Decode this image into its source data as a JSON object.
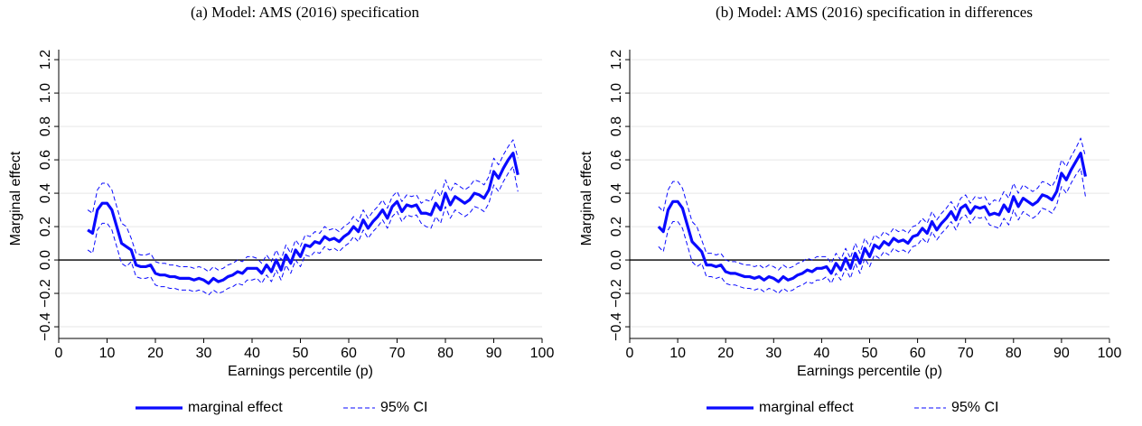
{
  "chart_data": [
    {
      "type": "line",
      "title": "(a) Model: AMS (2016) specification",
      "xlabel": "Earnings percentile (p)",
      "ylabel": "Marginal effect",
      "xlim": [
        0,
        100
      ],
      "xticks": [
        0,
        10,
        20,
        30,
        40,
        50,
        60,
        70,
        80,
        90,
        100
      ],
      "ylim": [
        -0.47,
        1.26
      ],
      "yticks": [
        {
          "value": -0.4,
          "label": "−0.4"
        },
        {
          "value": -0.2,
          "label": "−0.2"
        },
        {
          "value": 0,
          "label": "0.0"
        },
        0.2,
        0.4,
        0.6,
        0.8,
        {
          "value": 1,
          "label": "1.0"
        },
        1.2
      ],
      "grid": true,
      "zero_line": true,
      "x": [
        6,
        7,
        8,
        9,
        10,
        11,
        12,
        13,
        14,
        15,
        16,
        17,
        18,
        19,
        20,
        21,
        22,
        23,
        24,
        25,
        26,
        27,
        28,
        29,
        30,
        31,
        32,
        33,
        34,
        35,
        36,
        37,
        38,
        39,
        40,
        41,
        42,
        43,
        44,
        45,
        46,
        47,
        48,
        49,
        50,
        51,
        52,
        53,
        54,
        55,
        56,
        57,
        58,
        59,
        60,
        61,
        62,
        63,
        64,
        65,
        66,
        67,
        68,
        69,
        70,
        71,
        72,
        73,
        74,
        75,
        76,
        77,
        78,
        79,
        80,
        81,
        82,
        83,
        84,
        85,
        86,
        87,
        88,
        89,
        90,
        91,
        92,
        93,
        94,
        95
      ],
      "series": [
        {
          "name": "marginal effect",
          "color": "#0a0aff",
          "style": "solid",
          "values": [
            0.18,
            0.16,
            0.3,
            0.34,
            0.34,
            0.3,
            0.2,
            0.1,
            0.08,
            0.06,
            -0.03,
            -0.04,
            -0.04,
            -0.03,
            -0.08,
            -0.09,
            -0.09,
            -0.1,
            -0.1,
            -0.11,
            -0.11,
            -0.11,
            -0.12,
            -0.11,
            -0.12,
            -0.14,
            -0.11,
            -0.13,
            -0.12,
            -0.1,
            -0.09,
            -0.07,
            -0.08,
            -0.05,
            -0.05,
            -0.05,
            -0.08,
            -0.03,
            -0.07,
            0.0,
            -0.06,
            0.03,
            -0.02,
            0.06,
            0.02,
            0.09,
            0.08,
            0.11,
            0.1,
            0.14,
            0.12,
            0.13,
            0.11,
            0.14,
            0.16,
            0.2,
            0.17,
            0.24,
            0.19,
            0.23,
            0.26,
            0.3,
            0.25,
            0.32,
            0.35,
            0.29,
            0.33,
            0.32,
            0.33,
            0.28,
            0.28,
            0.27,
            0.34,
            0.3,
            0.4,
            0.33,
            0.38,
            0.36,
            0.34,
            0.36,
            0.4,
            0.39,
            0.37,
            0.42,
            0.53,
            0.49,
            0.55,
            0.6,
            0.64,
            0.51
          ]
        },
        {
          "name": "95% CI",
          "color": "#0a0aff",
          "style": "dashed",
          "lower": [
            0.06,
            0.04,
            0.18,
            0.22,
            0.22,
            0.18,
            0.08,
            -0.02,
            -0.04,
            -0.01,
            -0.1,
            -0.11,
            -0.11,
            -0.1,
            -0.15,
            -0.16,
            -0.16,
            -0.17,
            -0.17,
            -0.18,
            -0.18,
            -0.18,
            -0.19,
            -0.18,
            -0.19,
            -0.21,
            -0.18,
            -0.2,
            -0.19,
            -0.17,
            -0.16,
            -0.14,
            -0.15,
            -0.12,
            -0.12,
            -0.11,
            -0.14,
            -0.09,
            -0.13,
            -0.06,
            -0.12,
            -0.03,
            -0.08,
            0.0,
            -0.04,
            0.03,
            0.02,
            0.05,
            0.04,
            0.08,
            0.06,
            0.07,
            0.05,
            0.08,
            0.1,
            0.14,
            0.11,
            0.18,
            0.13,
            0.17,
            0.2,
            0.24,
            0.19,
            0.26,
            0.29,
            0.23,
            0.27,
            0.26,
            0.27,
            0.22,
            0.2,
            0.19,
            0.26,
            0.22,
            0.32,
            0.25,
            0.3,
            0.28,
            0.26,
            0.28,
            0.32,
            0.31,
            0.29,
            0.34,
            0.45,
            0.41,
            0.47,
            0.52,
            0.56,
            0.41
          ],
          "upper": [
            0.3,
            0.28,
            0.42,
            0.46,
            0.46,
            0.42,
            0.32,
            0.22,
            0.2,
            0.13,
            0.04,
            0.03,
            0.03,
            0.04,
            -0.01,
            -0.02,
            -0.02,
            -0.03,
            -0.03,
            -0.04,
            -0.04,
            -0.04,
            -0.05,
            -0.04,
            -0.05,
            -0.07,
            -0.04,
            -0.06,
            -0.05,
            -0.03,
            -0.02,
            0.0,
            -0.01,
            0.02,
            0.02,
            0.01,
            -0.02,
            0.03,
            -0.01,
            0.06,
            0.0,
            0.09,
            0.04,
            0.12,
            0.08,
            0.15,
            0.14,
            0.17,
            0.16,
            0.2,
            0.18,
            0.19,
            0.17,
            0.2,
            0.22,
            0.26,
            0.23,
            0.3,
            0.25,
            0.29,
            0.32,
            0.36,
            0.31,
            0.38,
            0.41,
            0.35,
            0.39,
            0.38,
            0.39,
            0.34,
            0.36,
            0.35,
            0.42,
            0.38,
            0.48,
            0.41,
            0.46,
            0.44,
            0.42,
            0.44,
            0.48,
            0.47,
            0.45,
            0.5,
            0.61,
            0.57,
            0.63,
            0.68,
            0.72,
            0.61
          ]
        }
      ]
    },
    {
      "type": "line",
      "title": "(b) Model: AMS (2016) specification in differences",
      "xlabel": "Earnings percentile (p)",
      "ylabel": "Marginal effect",
      "xlim": [
        0,
        100
      ],
      "xticks": [
        0,
        10,
        20,
        30,
        40,
        50,
        60,
        70,
        80,
        90,
        100
      ],
      "ylim": [
        -0.47,
        1.26
      ],
      "yticks": [
        {
          "value": -0.4,
          "label": "−0.4"
        },
        {
          "value": -0.2,
          "label": "−0.2"
        },
        {
          "value": 0,
          "label": "0.0"
        },
        0.2,
        0.4,
        0.6,
        0.8,
        {
          "value": 1,
          "label": "1.0"
        },
        1.2
      ],
      "grid": true,
      "zero_line": true,
      "x": [
        6,
        7,
        8,
        9,
        10,
        11,
        12,
        13,
        14,
        15,
        16,
        17,
        18,
        19,
        20,
        21,
        22,
        23,
        24,
        25,
        26,
        27,
        28,
        29,
        30,
        31,
        32,
        33,
        34,
        35,
        36,
        37,
        38,
        39,
        40,
        41,
        42,
        43,
        44,
        45,
        46,
        47,
        48,
        49,
        50,
        51,
        52,
        53,
        54,
        55,
        56,
        57,
        58,
        59,
        60,
        61,
        62,
        63,
        64,
        65,
        66,
        67,
        68,
        69,
        70,
        71,
        72,
        73,
        74,
        75,
        76,
        77,
        78,
        79,
        80,
        81,
        82,
        83,
        84,
        85,
        86,
        87,
        88,
        89,
        90,
        91,
        92,
        93,
        94,
        95
      ],
      "series": [
        {
          "name": "marginal effect",
          "color": "#0a0aff",
          "style": "solid",
          "values": [
            0.2,
            0.17,
            0.3,
            0.35,
            0.35,
            0.31,
            0.21,
            0.11,
            0.08,
            0.05,
            -0.03,
            -0.03,
            -0.04,
            -0.03,
            -0.07,
            -0.08,
            -0.08,
            -0.09,
            -0.1,
            -0.1,
            -0.11,
            -0.1,
            -0.12,
            -0.1,
            -0.11,
            -0.13,
            -0.1,
            -0.12,
            -0.11,
            -0.09,
            -0.08,
            -0.06,
            -0.07,
            -0.05,
            -0.05,
            -0.04,
            -0.08,
            -0.02,
            -0.06,
            0.01,
            -0.05,
            0.04,
            -0.02,
            0.07,
            0.02,
            0.09,
            0.07,
            0.11,
            0.09,
            0.13,
            0.11,
            0.12,
            0.1,
            0.14,
            0.15,
            0.19,
            0.16,
            0.23,
            0.18,
            0.22,
            0.25,
            0.29,
            0.24,
            0.31,
            0.33,
            0.28,
            0.32,
            0.31,
            0.32,
            0.27,
            0.28,
            0.27,
            0.33,
            0.29,
            0.38,
            0.32,
            0.37,
            0.35,
            0.33,
            0.35,
            0.39,
            0.38,
            0.36,
            0.41,
            0.52,
            0.48,
            0.54,
            0.59,
            0.64,
            0.5
          ]
        },
        {
          "name": "95% CI",
          "color": "#0a0aff",
          "style": "dashed",
          "lower": [
            0.08,
            0.05,
            0.18,
            0.23,
            0.23,
            0.19,
            0.09,
            -0.01,
            -0.04,
            -0.02,
            -0.1,
            -0.1,
            -0.11,
            -0.1,
            -0.14,
            -0.15,
            -0.15,
            -0.16,
            -0.17,
            -0.17,
            -0.18,
            -0.17,
            -0.19,
            -0.17,
            -0.18,
            -0.2,
            -0.17,
            -0.19,
            -0.18,
            -0.16,
            -0.15,
            -0.13,
            -0.14,
            -0.12,
            -0.12,
            -0.1,
            -0.14,
            -0.08,
            -0.12,
            -0.05,
            -0.11,
            -0.02,
            -0.08,
            0.01,
            -0.04,
            0.03,
            0.01,
            0.05,
            0.03,
            0.07,
            0.05,
            0.06,
            0.04,
            0.08,
            0.09,
            0.13,
            0.1,
            0.17,
            0.12,
            0.16,
            0.19,
            0.23,
            0.18,
            0.25,
            0.27,
            0.22,
            0.26,
            0.25,
            0.26,
            0.21,
            0.2,
            0.19,
            0.25,
            0.21,
            0.3,
            0.24,
            0.29,
            0.27,
            0.25,
            0.27,
            0.31,
            0.3,
            0.28,
            0.33,
            0.44,
            0.4,
            0.46,
            0.51,
            0.55,
            0.38
          ],
          "upper": [
            0.32,
            0.29,
            0.42,
            0.47,
            0.47,
            0.43,
            0.33,
            0.23,
            0.2,
            0.12,
            0.04,
            0.04,
            0.03,
            0.04,
            0.0,
            -0.01,
            -0.01,
            -0.02,
            -0.03,
            -0.03,
            -0.04,
            -0.03,
            -0.05,
            -0.03,
            -0.04,
            -0.06,
            -0.03,
            -0.05,
            -0.04,
            -0.02,
            -0.01,
            0.01,
            0.0,
            0.02,
            0.02,
            0.02,
            -0.02,
            0.04,
            0.0,
            0.07,
            0.01,
            0.1,
            0.04,
            0.13,
            0.08,
            0.15,
            0.13,
            0.17,
            0.15,
            0.19,
            0.17,
            0.18,
            0.16,
            0.2,
            0.21,
            0.25,
            0.22,
            0.29,
            0.24,
            0.28,
            0.31,
            0.35,
            0.3,
            0.37,
            0.39,
            0.34,
            0.38,
            0.37,
            0.38,
            0.33,
            0.36,
            0.35,
            0.41,
            0.37,
            0.46,
            0.4,
            0.45,
            0.43,
            0.41,
            0.43,
            0.47,
            0.46,
            0.44,
            0.49,
            0.6,
            0.56,
            0.62,
            0.67,
            0.73,
            0.62
          ]
        }
      ]
    }
  ]
}
